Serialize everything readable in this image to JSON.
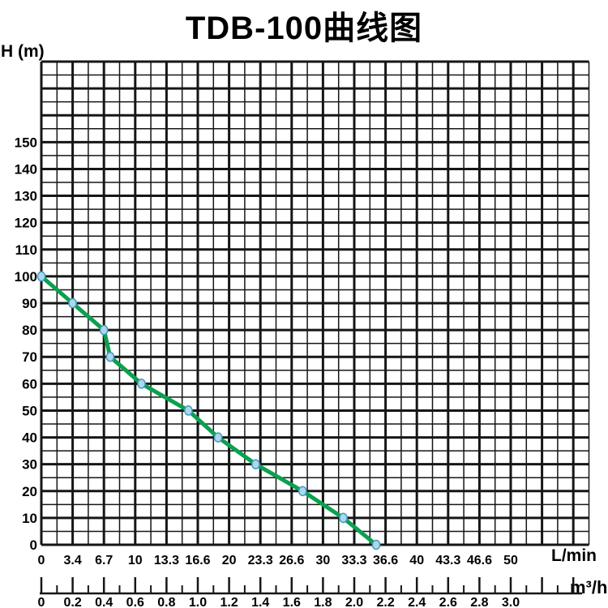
{
  "title": "TDB-100曲线图",
  "colors": {
    "background": "#ffffff",
    "grid": "#161616",
    "text": "#000000",
    "curve": "#0ba04f",
    "marker_fill": "#a9d9ea",
    "marker_stroke": "#4898c0"
  },
  "chart_data": {
    "type": "line",
    "title": "TDB-100曲线图",
    "y_axis": {
      "label": "H (m)",
      "tick_labels": [
        "0",
        "10",
        "20",
        "30",
        "40",
        "50",
        "60",
        "70",
        "80",
        "90",
        "100",
        "110",
        "120",
        "130",
        "140",
        "150"
      ],
      "tick_step": 10,
      "minor_step": 5,
      "range": [
        0,
        180
      ],
      "grid": true
    },
    "x_axis_lmin": {
      "label": "L/min",
      "tick_labels": [
        "0",
        "3.4",
        "6.7",
        "10",
        "13.3",
        "16.6",
        "20",
        "23.3",
        "26.6",
        "30",
        "33.3",
        "36.6",
        "40",
        "43.3",
        "46.6",
        "50"
      ],
      "tick_step_m3h": 0.2
    },
    "x_axis_m3h": {
      "label": "m³/h",
      "tick_labels": [
        "0",
        "0.2",
        "0.4",
        "0.6",
        "0.8",
        "1.0",
        "1.2",
        "1.4",
        "1.6",
        "1.8",
        "2.0",
        "2.2",
        "2.4",
        "2.6",
        "2.8",
        "3.0"
      ],
      "tick_step": 0.2,
      "minor_step": 0.1,
      "range": [
        0,
        3.4
      ]
    },
    "grid": {
      "x_minor_m3h": 0.1,
      "x_major_m3h": 0.2,
      "y_minor_m": 5,
      "y_major_m": 10,
      "x_range_m3h": [
        0,
        3.5
      ],
      "y_range_m": [
        0,
        180
      ]
    },
    "series": [
      {
        "name": "TDB-100",
        "points_m3h_h": [
          [
            0,
            100
          ],
          [
            0.2,
            90
          ],
          [
            0.4,
            80
          ],
          [
            0.44,
            70
          ],
          [
            0.64,
            60
          ],
          [
            0.94,
            50
          ],
          [
            1.13,
            40
          ],
          [
            1.37,
            30
          ],
          [
            1.67,
            20
          ],
          [
            1.93,
            10
          ],
          [
            2.14,
            0
          ]
        ]
      }
    ]
  }
}
